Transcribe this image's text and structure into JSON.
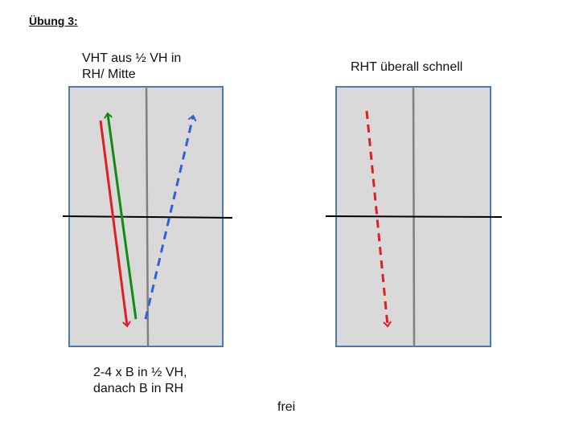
{
  "header": {
    "title": "Übung 3:"
  },
  "panels": [
    {
      "label": "VHT aus ½ VH in\nRH/ Mitte",
      "caption": "2-4 x B in ½ VH,\ndanach B in RH"
    },
    {
      "label": "RHT überall schnell"
    }
  ],
  "footer": {
    "note": "frei"
  }
}
